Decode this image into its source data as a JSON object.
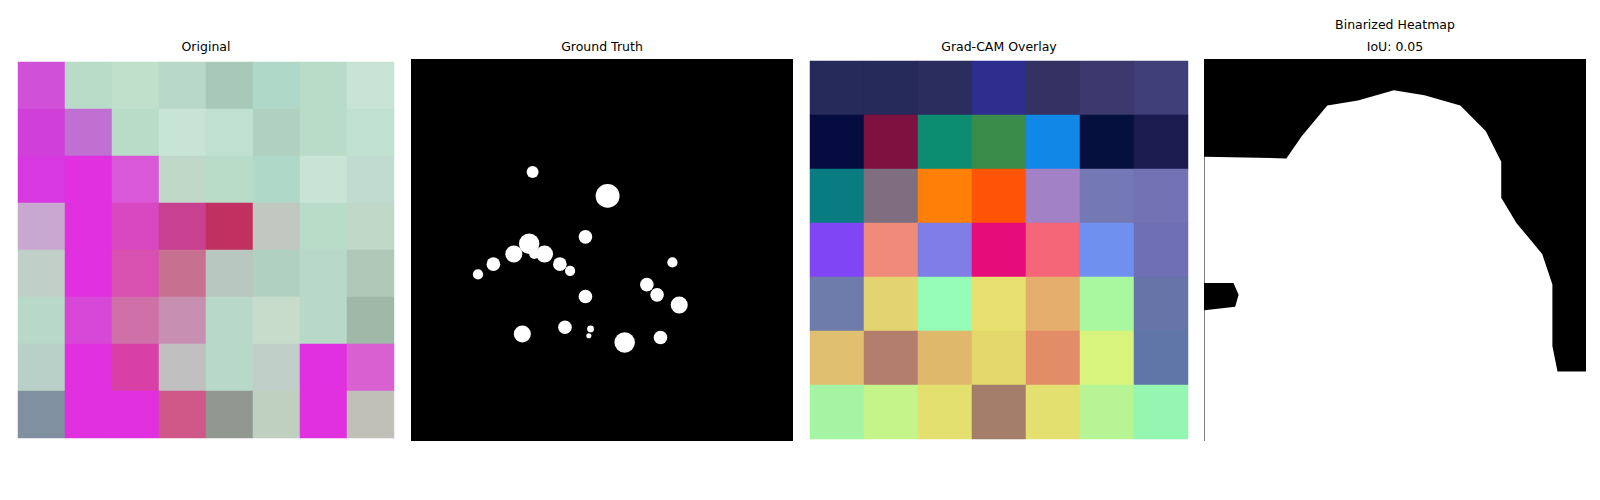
{
  "chart_data": [
    {
      "type": "image",
      "title": "Original",
      "cells": [
        [
          "#d050d8",
          "#b8dcc8",
          "#c0e0cc",
          "#b8d8c8",
          "#a8c8b8",
          "#b0d8c8",
          "#b8dcc8",
          "#c8e4d4"
        ],
        [
          "#d040d8",
          "#c070d0",
          "#b8dcc8",
          "#c8e4d4",
          "#c0e0d0",
          "#b0d0c0",
          "#b8dcc8",
          "#c0e0d0"
        ],
        [
          "#d838e0",
          "#e030e0",
          "#d858d8",
          "#c0d8c8",
          "#b8dcc8",
          "#b0d8c8",
          "#c8e4d4",
          "#c0dcd0"
        ],
        [
          "#c8a8d0",
          "#e030e0",
          "#d848c0",
          "#c84090",
          "#c03060",
          "#c0c8c0",
          "#b8dcc8",
          "#c0d8c8"
        ],
        [
          "#c0d0c8",
          "#e030e0",
          "#d850b0",
          "#c87090",
          "#b8c8c0",
          "#b0d0c0",
          "#b8d8c8",
          "#b0c8b8"
        ],
        [
          "#b8d8c8",
          "#d848d8",
          "#d070a8",
          "#c890b0",
          "#b8d8c8",
          "#c8dccc",
          "#b8d8c8",
          "#a0b8a8"
        ],
        [
          "#b8d0c8",
          "#e030e0",
          "#d840a8",
          "#c0c0c0",
          "#b8d8c8",
          "#c0d0c8",
          "#e030e0",
          "#d860d0"
        ],
        [
          "#8090a0",
          "#e030e0",
          "#e030e0",
          "#d05888",
          "#909890",
          "#c0d0c0",
          "#e030e0",
          "#c0c0b8"
        ]
      ]
    },
    {
      "type": "mask",
      "title": "Ground Truth",
      "color": "#ffffff",
      "xlim": [
        0,
        224
      ],
      "ylim": [
        0,
        224
      ],
      "blobs": [
        [
          71,
          66,
          3.5
        ],
        [
          115,
          80,
          7
        ],
        [
          72,
          114,
          3
        ],
        [
          102,
          104,
          4
        ],
        [
          69,
          108,
          6
        ],
        [
          60,
          114,
          5
        ],
        [
          48,
          120,
          4
        ],
        [
          39,
          126,
          3
        ],
        [
          78,
          114,
          5
        ],
        [
          87,
          120,
          4
        ],
        [
          93,
          124,
          3
        ],
        [
          102,
          139,
          4
        ],
        [
          105,
          158,
          2
        ],
        [
          153,
          119,
          3
        ],
        [
          138,
          132,
          4
        ],
        [
          157,
          144,
          5
        ],
        [
          144,
          138,
          4
        ],
        [
          65,
          161,
          5
        ],
        [
          90,
          157,
          4
        ],
        [
          104,
          162,
          1.5
        ],
        [
          125,
          166,
          6
        ],
        [
          146,
          163,
          4
        ]
      ]
    },
    {
      "type": "heatmap",
      "title": "Grad-CAM Overlay",
      "cells": [
        [
          "#252a5a",
          "#262a5a",
          "#2a2d5e",
          "#2d2e8e",
          "#333263",
          "#3b396e",
          "#3f3e78"
        ],
        [
          "#050c40",
          "#7e1140",
          "#0c8c70",
          "#3a8c4a",
          "#1088e8",
          "#05103f",
          "#1b1b50"
        ],
        [
          "#087c80",
          "#7e6e80",
          "#ff7f08",
          "#ff5408",
          "#a381c6",
          "#7479b5",
          "#7272b4"
        ],
        [
          "#8046f5",
          "#f08a7a",
          "#7e7ee6",
          "#e60c79",
          "#f56679",
          "#7090f0",
          "#6f6fb5"
        ],
        [
          "#6d7caa",
          "#e4d470",
          "#94fcb4",
          "#e6e06e",
          "#e6ae6c",
          "#a8f8a0",
          "#6674a8"
        ],
        [
          "#e0c070",
          "#b47e6e",
          "#e0b86c",
          "#e4d86c",
          "#e28c68",
          "#d8f47c",
          "#6076a8"
        ],
        [
          "#a4f4a4",
          "#c4f48a",
          "#e4e070",
          "#a47e6a",
          "#e4e070",
          "#b6f494",
          "#94f6b0"
        ]
      ]
    },
    {
      "type": "binary",
      "title": [
        "Binarized Heatmap",
        "IoU: 0.05"
      ],
      "color": "#ffffff",
      "xlim": [
        0,
        224
      ],
      "ylim": [
        0,
        224
      ],
      "polygon": [
        [
          0,
          57
        ],
        [
          48,
          58
        ],
        [
          57,
          45
        ],
        [
          72,
          27
        ],
        [
          90,
          24
        ],
        [
          111,
          18
        ],
        [
          129,
          21
        ],
        [
          150,
          27
        ],
        [
          165,
          42
        ],
        [
          174,
          60
        ],
        [
          174,
          81
        ],
        [
          183,
          96
        ],
        [
          198,
          114
        ],
        [
          204,
          132
        ],
        [
          204,
          168
        ],
        [
          207,
          183
        ],
        [
          224,
          183
        ],
        [
          224,
          224
        ],
        [
          0,
          224
        ],
        [
          0,
          147
        ],
        [
          18,
          145
        ],
        [
          20,
          138
        ],
        [
          17,
          131
        ],
        [
          0,
          131
        ]
      ]
    }
  ]
}
